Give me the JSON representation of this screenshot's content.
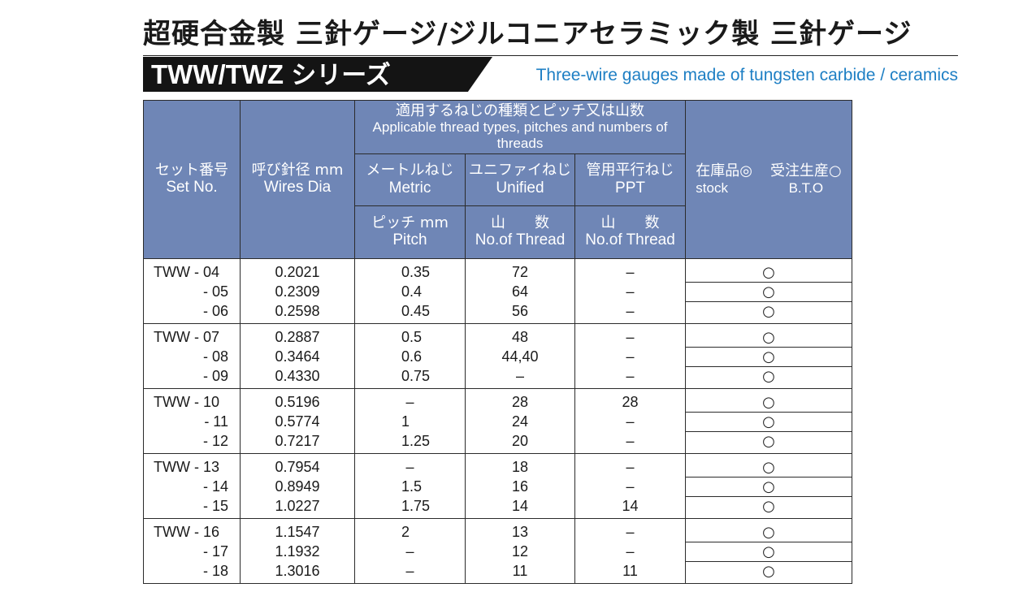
{
  "header": {
    "title": "超硬合金製 三針ゲージ/ジルコニアセラミック製 三針ゲージ",
    "series_latin": "TWW/TWZ",
    "series_jp": "シリーズ",
    "subtitle_en": "Three-wire gauges made of tungsten carbide / ceramics"
  },
  "colors": {
    "header_fill": "#6f86b6",
    "subtitle_text": "#1e7fc4",
    "series_band": "#141414"
  },
  "table": {
    "headers": {
      "set_no_jp": "セット番号",
      "set_no_en": "Set No.",
      "wire_jp": "呼び針径 mm",
      "wire_en": "Wires Dia",
      "group_jp": "適用するねじの種類とピッチ又は山数",
      "group_en": "Applicable thread types, pitches and numbers of threads",
      "metric_jp": "メートルねじ",
      "metric_en": "Metric",
      "unified_jp": "ユニファイねじ",
      "unified_en": "Unified",
      "ppt_jp": "管用平行ねじ",
      "ppt_en": "PPT",
      "pitch_jp": "ピッチ mm",
      "pitch_en": "Pitch",
      "threads_jp": "山　　数",
      "threads_en": "No.of Thread",
      "threads2_jp": "山　　数",
      "threads2_en": "No.of Thread",
      "stock_jp": "在庫品◎",
      "stock_en": "stock",
      "bto_jp": "受注生産○",
      "bto_en": "B.T.O"
    },
    "rows": [
      {
        "set": "TWW - 04",
        "wire": "0.2021",
        "pitch": "0.35",
        "unified": "72",
        "ppt": "–",
        "mark": "○"
      },
      {
        "set": "- 05",
        "wire": "0.2309",
        "pitch": "0.4",
        "unified": "64",
        "ppt": "–",
        "mark": "○"
      },
      {
        "set": "- 06",
        "wire": "0.2598",
        "pitch": "0.45",
        "unified": "56",
        "ppt": "–",
        "mark": "○"
      },
      {
        "set": "TWW - 07",
        "wire": "0.2887",
        "pitch": "0.5",
        "unified": "48",
        "ppt": "–",
        "mark": "○"
      },
      {
        "set": "- 08",
        "wire": "0.3464",
        "pitch": "0.6",
        "unified": "44,40",
        "ppt": "–",
        "mark": "○"
      },
      {
        "set": "- 09",
        "wire": "0.4330",
        "pitch": "0.75",
        "unified": "–",
        "ppt": "–",
        "mark": "○"
      },
      {
        "set": "TWW - 10",
        "wire": "0.5196",
        "pitch": "–",
        "unified": "28",
        "ppt": "28",
        "mark": "○"
      },
      {
        "set": "- 11",
        "wire": "0.5774",
        "pitch": "1",
        "unified": "24",
        "ppt": "–",
        "mark": "○"
      },
      {
        "set": "- 12",
        "wire": "0.7217",
        "pitch": "1.25",
        "unified": "20",
        "ppt": "–",
        "mark": "○"
      },
      {
        "set": "TWW - 13",
        "wire": "0.7954",
        "pitch": "–",
        "unified": "18",
        "ppt": "–",
        "mark": "○"
      },
      {
        "set": "- 14",
        "wire": "0.8949",
        "pitch": "1.5",
        "unified": "16",
        "ppt": "–",
        "mark": "○"
      },
      {
        "set": "- 15",
        "wire": "1.0227",
        "pitch": "1.75",
        "unified": "14",
        "ppt": "14",
        "mark": "○"
      },
      {
        "set": "TWW - 16",
        "wire": "1.1547",
        "pitch": "2",
        "unified": "13",
        "ppt": "–",
        "mark": "○"
      },
      {
        "set": "- 17",
        "wire": "1.1932",
        "pitch": "–",
        "unified": "12",
        "ppt": "–",
        "mark": "○"
      },
      {
        "set": "- 18",
        "wire": "1.3016",
        "pitch": "–",
        "unified": "11",
        "ppt": "11",
        "mark": "○"
      }
    ]
  }
}
